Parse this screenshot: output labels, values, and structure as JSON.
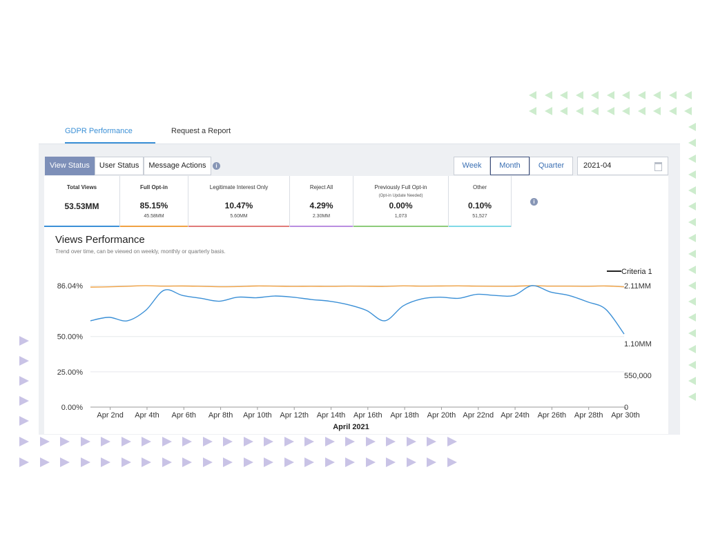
{
  "top_tabs": [
    {
      "label": "GDPR Performance",
      "active": true
    },
    {
      "label": "Request a Report",
      "active": false
    }
  ],
  "view_tabs": [
    {
      "label": "View Status",
      "active": true
    },
    {
      "label": "User Status",
      "active": false
    },
    {
      "label": "Message Actions",
      "active": false
    }
  ],
  "info_icon": "i",
  "periods": [
    {
      "label": "Week",
      "active": false
    },
    {
      "label": "Month",
      "active": true
    },
    {
      "label": "Quarter",
      "active": false
    }
  ],
  "date_value": "2021-04",
  "cards": [
    {
      "label": "Total Views",
      "sub": "",
      "value": "53.53MM",
      "count": "",
      "color": "#3a8fd6"
    },
    {
      "label": "Full Opt-in",
      "sub": "",
      "value": "85.15%",
      "count": "45.58MM",
      "color": "#f0a142"
    },
    {
      "label": "Legitimate Interest Only",
      "sub": "",
      "value": "10.47%",
      "count": "5.60MM",
      "color": "#e07a78"
    },
    {
      "label": "Reject All",
      "sub": "",
      "value": "4.29%",
      "count": "2.30MM",
      "color": "#b98de0"
    },
    {
      "label": "Previously Full Opt-in",
      "sub": "(Opt-in Update Needed)",
      "value": "0.00%",
      "count": "1,073",
      "color": "#8ccb7a"
    },
    {
      "label": "Other",
      "sub": "",
      "value": "0.10%",
      "count": "51,527",
      "color": "#7fd9e6"
    }
  ],
  "chart_header": {
    "title": "Views Performance",
    "subtitle": "Trend over time, can be viewed on weekly, monthly or quarterly basis."
  },
  "chart_data": {
    "type": "line",
    "xlabel": "April 2021",
    "legend": "Criteria 1",
    "legend_position": "top-right",
    "categories": [
      "Apr 1",
      "Apr 2",
      "Apr 3",
      "Apr 4",
      "Apr 5",
      "Apr 6",
      "Apr 7",
      "Apr 8",
      "Apr 9",
      "Apr 10",
      "Apr 11",
      "Apr 12",
      "Apr 13",
      "Apr 14",
      "Apr 15",
      "Apr 16",
      "Apr 17",
      "Apr 18",
      "Apr 19",
      "Apr 20",
      "Apr 21",
      "Apr 22",
      "Apr 23",
      "Apr 24",
      "Apr 25",
      "Apr 26",
      "Apr 27",
      "Apr 28",
      "Apr 29",
      "Apr 30"
    ],
    "x_tick_labels": [
      "Apr 2nd",
      "Apr 4th",
      "Apr 6th",
      "Apr 8th",
      "Apr 10th",
      "Apr 12th",
      "Apr 14th",
      "Apr 16th",
      "Apr 18th",
      "Apr 20th",
      "Apr 22nd",
      "Apr 24th",
      "Apr 26th",
      "Apr 28th",
      "Apr 30th"
    ],
    "left_axis": {
      "ticks": [
        0,
        25,
        50,
        86.04
      ],
      "tick_labels": [
        "0.00%",
        "25.00%",
        "50.00%",
        "86.04%"
      ],
      "range": [
        0,
        86.04
      ]
    },
    "right_axis": {
      "ticks": [
        0,
        550000,
        1100000,
        2110000
      ],
      "tick_labels": [
        "0",
        "550,000",
        "1.10MM",
        "2.11MM"
      ],
      "range": [
        0,
        2110000
      ]
    },
    "grid": true,
    "series": [
      {
        "name": "Full Opt-in %",
        "axis": "left",
        "color": "#f0a142",
        "values": [
          85.0,
          85.2,
          85.6,
          86.0,
          85.7,
          85.8,
          85.6,
          85.3,
          85.4,
          85.8,
          85.7,
          85.5,
          85.6,
          85.5,
          85.7,
          85.6,
          85.5,
          85.9,
          85.7,
          85.8,
          85.9,
          85.7,
          85.6,
          85.6,
          86.0,
          85.7,
          85.7,
          85.6,
          85.8,
          85.2
        ]
      },
      {
        "name": "Total Views",
        "axis": "right",
        "color": "#3a8fd6",
        "values": [
          1500000,
          1560000,
          1500000,
          1680000,
          2030000,
          1940000,
          1890000,
          1840000,
          1910000,
          1900000,
          1930000,
          1910000,
          1870000,
          1840000,
          1780000,
          1680000,
          1500000,
          1760000,
          1880000,
          1910000,
          1890000,
          1960000,
          1940000,
          1940000,
          2110000,
          2000000,
          1940000,
          1830000,
          1700000,
          1270000
        ]
      }
    ]
  }
}
